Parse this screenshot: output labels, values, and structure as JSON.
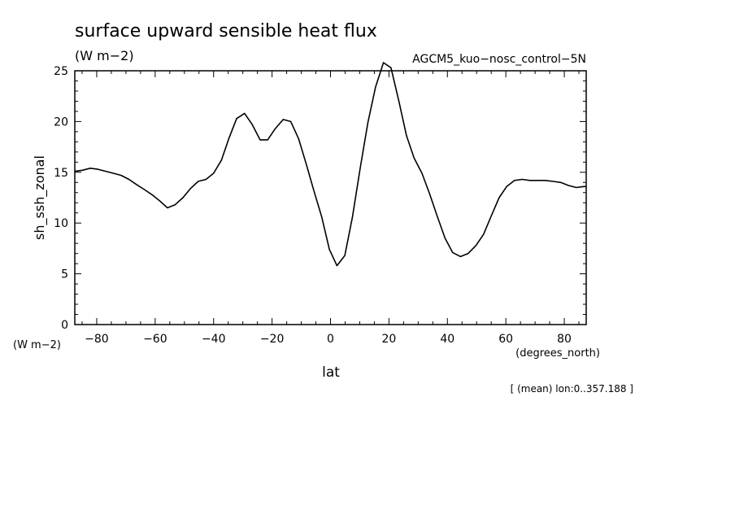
{
  "chart_data": {
    "type": "line",
    "title": "surface upward sensible heat flux",
    "units": "(W m−2)",
    "dataset": "AGCM5_kuo−nosc_control−5N",
    "ylabel": "sh_ssh_zonal",
    "y_units": "(W m−2)",
    "xlabel": "lat",
    "x_units": "(degrees_north)",
    "subtitle_note": "[ (mean) lon:0..357.188 ]",
    "xlim": [
      -87.5,
      87.5
    ],
    "ylim": [
      0,
      25
    ],
    "x_ticks": [
      -80,
      -60,
      -40,
      -20,
      0,
      20,
      40,
      60,
      80
    ],
    "x_tick_labels": [
      "−80",
      "−60",
      "−40",
      "−20",
      "0",
      "20",
      "40",
      "60",
      "80"
    ],
    "y_ticks": [
      0,
      5,
      10,
      15,
      20,
      25
    ],
    "y_tick_labels": [
      "0",
      "5",
      "10",
      "15",
      "20",
      "25"
    ],
    "line_color": "#000000",
    "x": [
      -87.5,
      -84.9,
      -82.2,
      -79.6,
      -76.9,
      -74.3,
      -71.7,
      -69.0,
      -66.4,
      -63.7,
      -61.1,
      -58.5,
      -55.8,
      -53.2,
      -50.5,
      -47.9,
      -45.3,
      -42.6,
      -40.0,
      -37.3,
      -34.7,
      -32.1,
      -29.4,
      -26.8,
      -24.1,
      -21.5,
      -18.9,
      -16.2,
      -13.6,
      -10.9,
      -8.3,
      -5.7,
      -3.0,
      -0.4,
      2.2,
      4.9,
      7.5,
      10.2,
      12.8,
      15.4,
      18.1,
      20.7,
      23.4,
      26.0,
      28.6,
      31.3,
      33.9,
      36.6,
      39.2,
      41.8,
      44.5,
      47.1,
      49.8,
      52.4,
      55.0,
      57.7,
      60.3,
      63.0,
      65.6,
      68.2,
      70.9,
      73.5,
      76.2,
      78.8,
      81.4,
      84.1,
      86.7,
      87.5
    ],
    "y": [
      15.1,
      15.2,
      15.4,
      15.3,
      15.1,
      14.9,
      14.7,
      14.3,
      13.8,
      13.3,
      12.8,
      12.2,
      11.5,
      11.8,
      12.5,
      13.4,
      14.1,
      14.3,
      14.9,
      16.2,
      18.4,
      20.3,
      20.8,
      19.7,
      18.2,
      18.2,
      19.3,
      20.2,
      20.0,
      18.3,
      15.8,
      13.2,
      10.6,
      7.4,
      5.8,
      6.8,
      10.6,
      15.5,
      19.9,
      23.4,
      25.8,
      25.3,
      22.0,
      18.6,
      16.4,
      14.9,
      12.9,
      10.6,
      8.5,
      7.1,
      6.7,
      7.0,
      7.8,
      8.9,
      10.7,
      12.5,
      13.6,
      14.2,
      14.3,
      14.2,
      14.2,
      14.2,
      14.1,
      14.0,
      13.7,
      13.5,
      13.6,
      13.6
    ]
  }
}
